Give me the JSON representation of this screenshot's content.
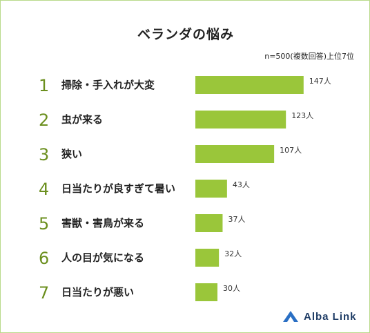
{
  "title": "ベランダの悩み",
  "note": "n=500(複数回答)上位7位",
  "brand": "Alba Link",
  "colors": {
    "bar": "#9ac63a",
    "rank": "#6b8f1e",
    "logo": "#1f3d66"
  },
  "chart_data": {
    "type": "bar",
    "orientation": "horizontal",
    "ranks": [
      "1",
      "2",
      "3",
      "4",
      "5",
      "6",
      "7"
    ],
    "categories": [
      "掃除・手入れが大変",
      "虫が来る",
      "狭い",
      "日当たりが良すぎて暑い",
      "害獣・害鳥が来る",
      "人の目が気になる",
      "日当たりが悪い"
    ],
    "values": [
      147,
      123,
      107,
      43,
      37,
      32,
      30
    ],
    "value_labels": [
      "147人",
      "123人",
      "107人",
      "43人",
      "37人",
      "32人",
      "30人"
    ],
    "title": "ベランダの悩み",
    "xlim": [
      0,
      150
    ],
    "grid": false,
    "legend": "none"
  }
}
